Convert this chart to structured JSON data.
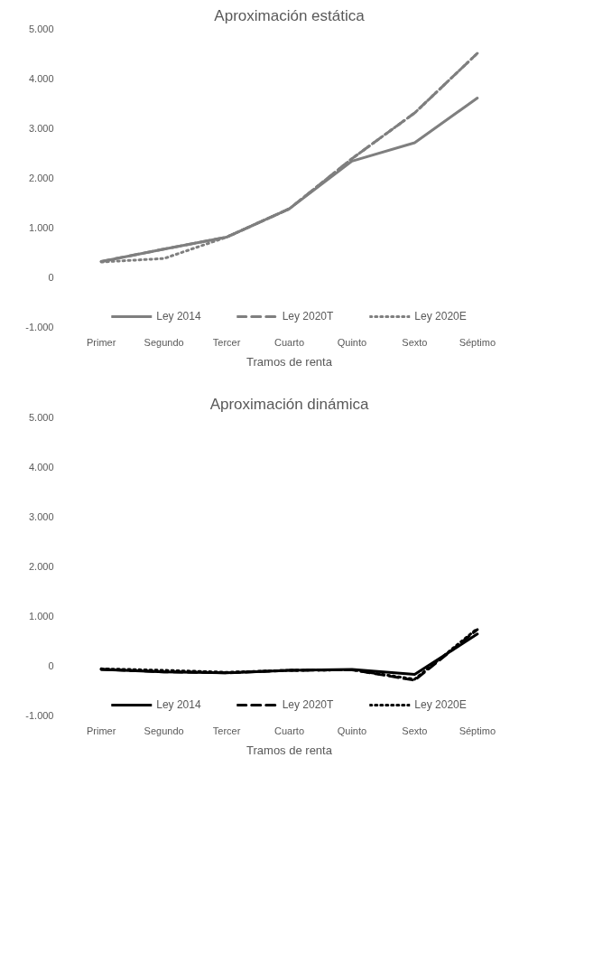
{
  "chart_data": [
    {
      "type": "line",
      "title": "Aproximación estática",
      "xlabel": "Tramos de renta",
      "categories": [
        "Primer",
        "Segundo",
        "Tercer",
        "Cuarto",
        "Quinto",
        "Sexto",
        "Séptimo"
      ],
      "ylim": [
        -1000,
        5000
      ],
      "yticks": [
        {
          "value": -1000,
          "label": "-1.000"
        },
        0,
        {
          "value": 1000,
          "label": "1.000"
        },
        {
          "value": 2000,
          "label": "2.000"
        },
        {
          "value": 3000,
          "label": "3.000"
        },
        {
          "value": 4000,
          "label": "4.000"
        },
        {
          "value": 5000,
          "label": "5.000"
        }
      ],
      "grid": false,
      "legend": "bottom",
      "series": [
        {
          "name": "Ley 2014",
          "color": "#7f7f7f",
          "line_style": "solid",
          "values": [
            310,
            560,
            800,
            1370,
            2330,
            2700,
            3600
          ]
        },
        {
          "name": "Ley 2020T",
          "color": "#7f7f7f",
          "line_style": "dashed",
          "values": [
            310,
            560,
            800,
            1370,
            2380,
            3300,
            4500
          ]
        },
        {
          "name": "Ley 2020E",
          "color": "#7f7f7f",
          "line_style": "dotted",
          "values": [
            300,
            370,
            800,
            1370,
            2380,
            3300,
            4500
          ]
        }
      ]
    },
    {
      "type": "line",
      "title": "Aproximación dinámica",
      "xlabel": "Tramos de renta",
      "categories": [
        "Primer",
        "Segundo",
        "Tercer",
        "Cuarto",
        "Quinto",
        "Sexto",
        "Séptimo"
      ],
      "ylim": [
        -1000,
        5000
      ],
      "yticks": [
        {
          "value": -1000,
          "label": "-1.000"
        },
        0,
        {
          "value": 1000,
          "label": "1.000"
        },
        {
          "value": 2000,
          "label": "2.000"
        },
        {
          "value": 3000,
          "label": "3.000"
        },
        {
          "value": 4000,
          "label": "4.000"
        },
        {
          "value": 5000,
          "label": "5.000"
        }
      ],
      "grid": false,
      "legend": "bottom",
      "series": [
        {
          "name": "Ley 2014",
          "color": "#000000",
          "line_style": "solid",
          "values": [
            -80,
            -130,
            -150,
            -100,
            -80,
            -180,
            630
          ]
        },
        {
          "name": "Ley 2020T",
          "color": "#000000",
          "line_style": "dashed",
          "values": [
            -80,
            -130,
            -150,
            -100,
            -90,
            -300,
            720
          ]
        },
        {
          "name": "Ley 2020E",
          "color": "#000000",
          "line_style": "dotted",
          "values": [
            -70,
            -100,
            -140,
            -100,
            -90,
            -280,
            740
          ]
        }
      ]
    }
  ]
}
